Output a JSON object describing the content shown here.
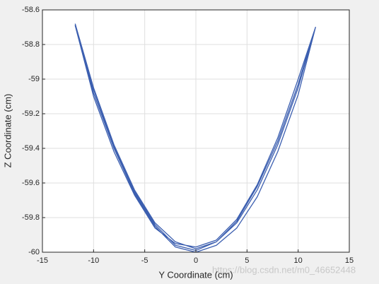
{
  "chart_data": {
    "type": "line",
    "xlabel": "Y Coordinate (cm)",
    "ylabel": "Z Coordinate (cm)",
    "watermark": "https://blog.csdn.net/m0_46652448",
    "xlim": [
      -15,
      15
    ],
    "ylim": [
      -60,
      -58.6
    ],
    "xticks": [
      -15,
      -10,
      -5,
      0,
      5,
      10,
      15
    ],
    "yticks": [
      -60,
      -59.8,
      -59.6,
      -59.4,
      -59.2,
      -59,
      -58.8,
      -58.6
    ],
    "grid": true,
    "series": [
      {
        "color": "#3c5fb0",
        "x": [
          -11.8,
          -10,
          -8,
          -6,
          -4,
          -2,
          0,
          2,
          4,
          6,
          8,
          10,
          11.7,
          10,
          8,
          6,
          4,
          2,
          0,
          -2,
          -4,
          -6,
          -8,
          -10,
          -11.8,
          -10,
          -8,
          -6,
          -4,
          -2,
          0,
          2,
          4,
          6,
          8,
          10,
          11.7,
          10,
          8,
          6,
          4,
          2,
          0,
          -2,
          -4,
          -6,
          -8,
          -10,
          -11.8
        ],
        "values": [
          -58.68,
          -59.05,
          -59.38,
          -59.64,
          -59.83,
          -59.94,
          -59.98,
          -59.94,
          -59.83,
          -59.64,
          -59.38,
          -59.05,
          -58.7,
          -59.0,
          -59.34,
          -59.61,
          -59.81,
          -59.93,
          -59.97,
          -59.95,
          -59.86,
          -59.67,
          -59.42,
          -59.1,
          -58.69,
          -59.08,
          -59.4,
          -59.66,
          -59.85,
          -59.97,
          -60.0,
          -59.96,
          -59.86,
          -59.68,
          -59.42,
          -59.09,
          -58.7,
          -59.03,
          -59.36,
          -59.62,
          -59.82,
          -59.94,
          -59.99,
          -59.96,
          -59.84,
          -59.65,
          -59.39,
          -59.06,
          -58.69
        ]
      }
    ]
  }
}
